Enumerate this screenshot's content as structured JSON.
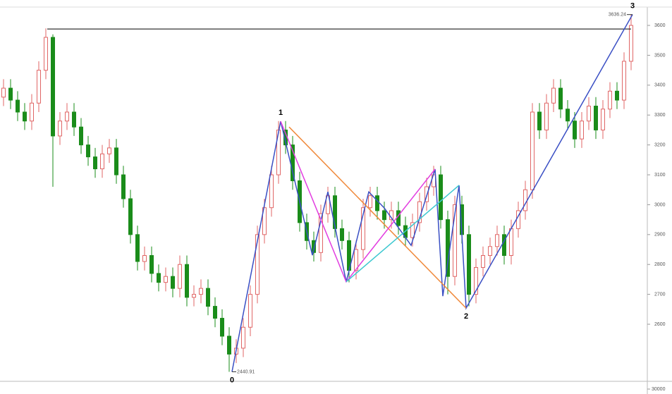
{
  "chart_data": {
    "type": "candlestick",
    "up_color": "#e06666",
    "down_color": "#1a8c1a",
    "open": [
      3360,
      3390,
      3350,
      3310,
      3280,
      3340,
      3450,
      3560,
      3230,
      3280,
      3310,
      3260,
      3200,
      3160,
      3120,
      3170,
      3190,
      3100,
      3020,
      2900,
      2810,
      2830,
      2770,
      2740,
      2760,
      2720,
      2800,
      2690,
      2700,
      2720,
      2660,
      2620,
      2560,
      2500,
      2520,
      2590,
      2700,
      2900,
      2990,
      3100,
      3250,
      3200,
      3080,
      2940,
      2880,
      2840,
      2970,
      3030,
      2920,
      2880,
      2780,
      2850,
      2990,
      3030,
      2980,
      2950,
      2980,
      2930,
      2890,
      2940,
      3010,
      3060,
      3100,
      2950,
      2760,
      3000,
      2900,
      2700,
      2790,
      2830,
      2860,
      2900,
      2830,
      2920,
      2980,
      3050,
      3310,
      3250,
      3340,
      3390,
      3320,
      3280,
      3220,
      3280,
      3330,
      3250,
      3320,
      3380,
      3350,
      3480
    ],
    "high": [
      3420,
      3420,
      3380,
      3340,
      3370,
      3480,
      3590,
      3570,
      3310,
      3340,
      3340,
      3290,
      3230,
      3190,
      3200,
      3220,
      3220,
      3130,
      3050,
      2930,
      2860,
      2860,
      2800,
      2790,
      2790,
      2830,
      2830,
      2730,
      2750,
      2750,
      2690,
      2650,
      2590,
      2550,
      2620,
      2730,
      2930,
      3020,
      3130,
      3280,
      3280,
      3230,
      3110,
      2970,
      2910,
      3000,
      3060,
      3060,
      2950,
      2910,
      2880,
      3020,
      3060,
      3060,
      3010,
      3010,
      3010,
      2960,
      2970,
      3040,
      3090,
      3130,
      3130,
      2980,
      3030,
      3030,
      2930,
      2820,
      2860,
      2890,
      2930,
      2930,
      2950,
      3010,
      3080,
      3340,
      3340,
      3370,
      3420,
      3420,
      3350,
      3310,
      3310,
      3360,
      3360,
      3350,
      3410,
      3410,
      3510,
      3636.24
    ],
    "low": [
      3330,
      3320,
      3280,
      3250,
      3250,
      3310,
      3420,
      3060,
      3200,
      3250,
      3230,
      3170,
      3130,
      3090,
      3090,
      3140,
      3070,
      2990,
      2870,
      2780,
      2780,
      2740,
      2710,
      2710,
      2690,
      2690,
      2660,
      2660,
      2670,
      2630,
      2590,
      2530,
      2440.91,
      2470,
      2490,
      2560,
      2670,
      2870,
      2960,
      3070,
      3170,
      3050,
      2910,
      2850,
      2810,
      2810,
      2940,
      2890,
      2850,
      2740,
      2750,
      2820,
      2960,
      2950,
      2920,
      2920,
      2900,
      2860,
      2860,
      2910,
      2980,
      3030,
      2920,
      2700,
      2730,
      2870,
      2660,
      2670,
      2760,
      2800,
      2830,
      2800,
      2800,
      2890,
      2950,
      3020,
      3220,
      3220,
      3310,
      3290,
      3250,
      3190,
      3190,
      3250,
      3220,
      3220,
      3290,
      3320,
      3320,
      3450
    ],
    "close": [
      3390,
      3350,
      3310,
      3280,
      3340,
      3450,
      3560,
      3230,
      3280,
      3310,
      3260,
      3200,
      3160,
      3120,
      3170,
      3190,
      3100,
      3020,
      2900,
      2810,
      2830,
      2770,
      2740,
      2760,
      2720,
      2800,
      2690,
      2700,
      2720,
      2660,
      2620,
      2560,
      2500,
      2520,
      2590,
      2700,
      2900,
      2990,
      3100,
      3250,
      3200,
      3080,
      2940,
      2880,
      2840,
      2970,
      3030,
      2920,
      2880,
      2780,
      2850,
      2990,
      3030,
      2980,
      2950,
      2980,
      2930,
      2890,
      2940,
      3010,
      3060,
      3100,
      2950,
      2760,
      3000,
      2900,
      2700,
      2790,
      2830,
      2860,
      2900,
      2830,
      2920,
      2980,
      3050,
      3310,
      3250,
      3340,
      3390,
      3320,
      3280,
      3220,
      3280,
      3330,
      3250,
      3320,
      3380,
      3350,
      3480,
      3600
    ],
    "ylim": [
      2409,
      3685
    ],
    "yticks": [
      2600,
      2700,
      2800,
      2900,
      3000,
      3100,
      3200,
      3300,
      3400,
      3500,
      3600
    ],
    "hline": {
      "value": 3588,
      "color": "#000000",
      "from": 6.2
    },
    "lines": [
      {
        "color": "#3a4fc4",
        "x": [
          32.4,
          39.3,
          43.8,
          46,
          48.6,
          51.8,
          54,
          57.8,
          61.2,
          62.3,
          64.6,
          65.6,
          89.2
        ],
        "values": [
          2440.91,
          3279,
          2831,
          3043,
          2742,
          3043,
          2989,
          2864,
          3119,
          2694,
          3065,
          2654,
          3636.24
        ]
      },
      {
        "color": "#f08a3c",
        "x": [
          40.5,
          65.6
        ],
        "values": [
          3260,
          2654
        ]
      },
      {
        "color": "#e23de0",
        "x": [
          39.3,
          48.6,
          61.2
        ],
        "values": [
          3279,
          2742,
          3119
        ]
      },
      {
        "color": "#3cc8d0",
        "x": [
          48.6,
          64.6
        ],
        "values": [
          2742,
          3065
        ]
      }
    ],
    "pivots": [
      {
        "label": "0",
        "x": 32.4,
        "price": 2440.91,
        "value_label": "2440.91"
      },
      {
        "label": "1",
        "x": 39.3,
        "price": 3279
      },
      {
        "label": "2",
        "x": 65.6,
        "price": 2654
      },
      {
        "label": "3",
        "x": 89.2,
        "price": 3636.24,
        "value_label": "3636.24"
      }
    ],
    "volume_yticks": [
      30000
    ]
  }
}
